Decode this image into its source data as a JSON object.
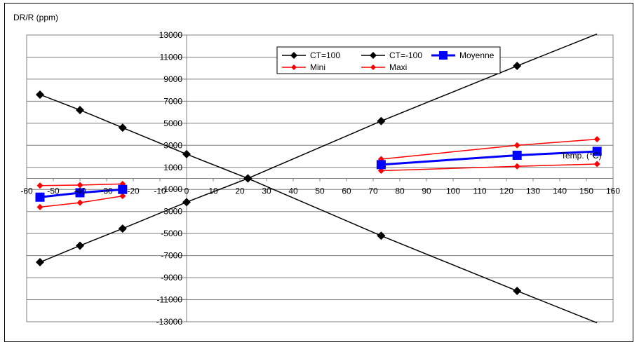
{
  "chart_data": {
    "type": "line",
    "ylabel": "DR/R (ppm)",
    "xlabel": "Temp. (°C)",
    "xlim": [
      -60,
      160
    ],
    "ylim": [
      -13000,
      13000
    ],
    "x_ticks": [
      -60,
      -50,
      -40,
      -30,
      -20,
      -10,
      0,
      10,
      20,
      30,
      40,
      50,
      60,
      70,
      80,
      90,
      100,
      110,
      120,
      130,
      140,
      150,
      160
    ],
    "y_ticks": [
      13000,
      11000,
      9000,
      7000,
      5000,
      3000,
      1000,
      -1000,
      -3000,
      -5000,
      -7000,
      -9000,
      -11000,
      -13000
    ],
    "grid": "horizontal",
    "legend_position": "top",
    "series": [
      {
        "name": "CT=100",
        "color": "#000000",
        "marker": "diamond",
        "x": [
          -55,
          -40,
          -24,
          0,
          23,
          73,
          124,
          154
        ],
        "y": [
          -7600,
          -6100,
          -4550,
          -2150,
          0,
          5200,
          10200,
          13100
        ],
        "marker_x": [
          -55,
          -40,
          -24,
          0,
          23,
          73,
          124
        ]
      },
      {
        "name": "CT=-100",
        "color": "#000000",
        "marker": "diamond",
        "x": [
          -55,
          -40,
          -24,
          0,
          23,
          73,
          124,
          154
        ],
        "y": [
          7600,
          6200,
          4600,
          2200,
          0,
          -5200,
          -10200,
          -13100
        ],
        "marker_x": [
          -55,
          -40,
          -24,
          0,
          23,
          73,
          124
        ]
      },
      {
        "name": "Moyenne",
        "color": "#0000ff",
        "marker": "square",
        "segments": [
          {
            "x": [
              -55,
              -40,
              -24
            ],
            "y": [
              -1700,
              -1300,
              -1000
            ]
          },
          {
            "x": [
              73,
              124,
              154
            ],
            "y": [
              1250,
              2100,
              2450
            ]
          }
        ]
      },
      {
        "name": "Mini",
        "color": "#ff0000",
        "marker": "diamond",
        "segments": [
          {
            "x": [
              -55,
              -40,
              -24
            ],
            "y": [
              -2600,
              -2200,
              -1600
            ]
          },
          {
            "x": [
              73,
              124,
              154
            ],
            "y": [
              700,
              1100,
              1300
            ]
          }
        ]
      },
      {
        "name": "Maxi",
        "color": "#ff0000",
        "marker": "diamond",
        "segments": [
          {
            "x": [
              -55,
              -40,
              -24
            ],
            "y": [
              -650,
              -600,
              -500
            ]
          },
          {
            "x": [
              73,
              124,
              154
            ],
            "y": [
              1750,
              3000,
              3550
            ]
          }
        ]
      }
    ]
  }
}
